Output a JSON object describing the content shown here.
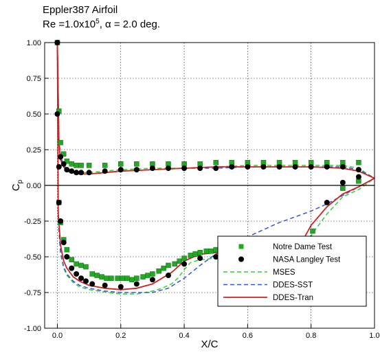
{
  "header": {
    "title": "Eppler387 Airfoil",
    "subtitle_prefix": "Re =1.0x10",
    "subtitle_exp": "5",
    "subtitle_suffix": ", α = 2.0 deg."
  },
  "chart_data": {
    "type": "scatter",
    "title": "Eppler387 Airfoil",
    "xlabel": "X/C",
    "ylabel": "C",
    "ylabel_sub": "p",
    "xlim": [
      -0.04,
      1.0
    ],
    "ylim": [
      1.0,
      -1.0
    ],
    "y_inverted": true,
    "grid": true,
    "legend_position": "lower-right",
    "x_ticks": [
      "0.0",
      "0.2",
      "0.4",
      "0.6",
      "0.8",
      "1.0"
    ],
    "x_tick_values": [
      0.0,
      0.2,
      0.4,
      0.6,
      0.8,
      1.0
    ],
    "y_ticks": [
      "-1.00",
      "-0.75",
      "-0.50",
      "-0.25",
      "0.00",
      "0.25",
      "0.50",
      "0.75",
      "1.00"
    ],
    "y_tick_values": [
      -1.0,
      -0.75,
      -0.5,
      -0.25,
      0.0,
      0.25,
      0.5,
      0.75,
      1.0
    ],
    "series": [
      {
        "name": "Notre Dame Test",
        "kind": "marker-square",
        "color": "#22a822",
        "upper": {
          "x": [
            0.0,
            0.005,
            0.01,
            0.02,
            0.03,
            0.045,
            0.06,
            0.075,
            0.09,
            0.11,
            0.125,
            0.14,
            0.155,
            0.17,
            0.19,
            0.205,
            0.22,
            0.235,
            0.25,
            0.27,
            0.285,
            0.3,
            0.32,
            0.335,
            0.35,
            0.37,
            0.385,
            0.4,
            0.42,
            0.435,
            0.45,
            0.47,
            0.485,
            0.5,
            0.52,
            0.535,
            0.55,
            0.57,
            0.585,
            0.6,
            0.62,
            0.635,
            0.65,
            0.665,
            0.68,
            0.695,
            0.71,
            0.725,
            0.74,
            0.755,
            0.77,
            0.79,
            0.805,
            0.9,
            0.95
          ],
          "y": [
            1.0,
            -0.12,
            -0.26,
            -0.38,
            -0.45,
            -0.52,
            -0.55,
            -0.56,
            -0.57,
            -0.62,
            -0.63,
            -0.64,
            -0.65,
            -0.65,
            -0.65,
            -0.65,
            -0.65,
            -0.66,
            -0.65,
            -0.64,
            -0.63,
            -0.62,
            -0.6,
            -0.58,
            -0.56,
            -0.55,
            -0.53,
            -0.51,
            -0.49,
            -0.48,
            -0.47,
            -0.46,
            -0.46,
            -0.45,
            -0.45,
            -0.45,
            -0.45,
            -0.45,
            -0.45,
            -0.44,
            -0.44,
            -0.45,
            -0.45,
            -0.46,
            -0.46,
            -0.46,
            -0.46,
            -0.46,
            -0.46,
            -0.46,
            -0.42,
            -0.38,
            -0.32,
            -0.02,
            0.03
          ]
        },
        "lower": {
          "x": [
            0.005,
            0.01,
            0.02,
            0.03,
            0.045,
            0.06,
            0.075,
            0.1,
            0.15,
            0.2,
            0.25,
            0.3,
            0.35,
            0.4,
            0.45,
            0.5,
            0.55,
            0.6,
            0.65,
            0.7,
            0.75,
            0.8,
            0.85,
            0.9,
            0.95
          ],
          "y": [
            0.52,
            0.3,
            0.22,
            0.17,
            0.15,
            0.14,
            0.14,
            0.14,
            0.14,
            0.15,
            0.15,
            0.15,
            0.15,
            0.15,
            0.15,
            0.16,
            0.16,
            0.16,
            0.16,
            0.16,
            0.16,
            0.16,
            0.16,
            0.16,
            0.16
          ]
        }
      },
      {
        "name": "NASA Langley Test",
        "kind": "marker-circle",
        "color": "#000000",
        "upper": {
          "x": [
            0.0,
            0.005,
            0.01,
            0.02,
            0.03,
            0.045,
            0.06,
            0.075,
            0.09,
            0.11,
            0.15,
            0.2,
            0.25,
            0.3,
            0.35,
            0.4,
            0.45,
            0.5,
            0.55,
            0.6,
            0.65,
            0.7,
            0.75,
            0.8,
            0.85,
            0.9,
            0.95
          ],
          "y": [
            1.0,
            -0.12,
            -0.25,
            -0.4,
            -0.5,
            -0.58,
            -0.62,
            -0.65,
            -0.67,
            -0.69,
            -0.7,
            -0.71,
            -0.69,
            -0.66,
            -0.63,
            -0.55,
            -0.51,
            -0.5,
            -0.5,
            -0.5,
            -0.5,
            -0.49,
            -0.49,
            -0.37,
            -0.12,
            0.02,
            0.06
          ]
        },
        "lower": {
          "x": [
            0.0,
            0.005,
            0.01,
            0.02,
            0.03,
            0.045,
            0.06,
            0.075,
            0.1,
            0.15,
            0.2,
            0.25,
            0.3,
            0.35,
            0.4,
            0.45,
            0.5,
            0.55,
            0.6,
            0.65,
            0.7,
            0.75,
            0.8,
            0.85,
            0.9,
            0.95
          ],
          "y": [
            0.5,
            0.13,
            0.2,
            0.15,
            0.11,
            0.1,
            0.09,
            0.09,
            0.09,
            0.1,
            0.11,
            0.11,
            0.12,
            0.12,
            0.12,
            0.12,
            0.12,
            0.13,
            0.13,
            0.13,
            0.13,
            0.13,
            0.13,
            0.13,
            0.13,
            0.11
          ]
        }
      },
      {
        "name": "MSES",
        "kind": "line-dashed",
        "color": "#33cc33",
        "upper": {
          "x": [
            0.0,
            0.003,
            0.01,
            0.02,
            0.03,
            0.05,
            0.07,
            0.1,
            0.13,
            0.16,
            0.2,
            0.25,
            0.3,
            0.33,
            0.36,
            0.38,
            0.4,
            0.42,
            0.45,
            0.5,
            0.55,
            0.6,
            0.65,
            0.7,
            0.72,
            0.74,
            0.76,
            0.78,
            0.8,
            0.85,
            0.9,
            0.95,
            1.0
          ],
          "y": [
            1.0,
            -0.25,
            -0.48,
            -0.58,
            -0.63,
            -0.68,
            -0.71,
            -0.73,
            -0.74,
            -0.75,
            -0.76,
            -0.76,
            -0.74,
            -0.72,
            -0.69,
            -0.65,
            -0.59,
            -0.54,
            -0.52,
            -0.51,
            -0.51,
            -0.5,
            -0.5,
            -0.5,
            -0.49,
            -0.48,
            -0.46,
            -0.42,
            -0.35,
            -0.2,
            -0.08,
            -0.03,
            0.05
          ]
        },
        "lower": {
          "x": [
            0.0,
            0.005,
            0.01,
            0.02,
            0.03,
            0.05,
            0.07,
            0.1,
            0.15,
            0.2,
            0.3,
            0.4,
            0.5,
            0.6,
            0.7,
            0.8,
            0.9,
            0.95,
            1.0
          ],
          "y": [
            1.0,
            0.32,
            0.2,
            0.15,
            0.11,
            0.1,
            0.09,
            0.09,
            0.1,
            0.11,
            0.12,
            0.12,
            0.13,
            0.14,
            0.14,
            0.14,
            0.14,
            0.12,
            0.05
          ]
        }
      },
      {
        "name": "DDES-SST",
        "kind": "line-dashed",
        "color": "#3355dd",
        "upper": {
          "x": [
            0.0,
            0.003,
            0.01,
            0.02,
            0.03,
            0.05,
            0.07,
            0.1,
            0.15,
            0.2,
            0.25,
            0.3,
            0.35,
            0.4,
            0.45,
            0.5,
            0.55,
            0.6,
            0.65,
            0.7,
            0.75,
            0.8,
            0.85,
            0.9,
            0.95,
            1.0
          ],
          "y": [
            1.0,
            -0.25,
            -0.47,
            -0.57,
            -0.62,
            -0.67,
            -0.7,
            -0.72,
            -0.74,
            -0.75,
            -0.75,
            -0.75,
            -0.72,
            -0.65,
            -0.56,
            -0.48,
            -0.42,
            -0.36,
            -0.31,
            -0.26,
            -0.22,
            -0.18,
            -0.13,
            -0.07,
            -0.01,
            0.05
          ]
        },
        "lower": {
          "x": [
            0.0,
            0.005,
            0.01,
            0.02,
            0.03,
            0.05,
            0.07,
            0.1,
            0.15,
            0.2,
            0.3,
            0.4,
            0.5,
            0.6,
            0.7,
            0.8,
            0.9,
            0.95,
            1.0
          ],
          "y": [
            1.0,
            0.32,
            0.2,
            0.14,
            0.11,
            0.09,
            0.08,
            0.08,
            0.09,
            0.1,
            0.11,
            0.12,
            0.12,
            0.13,
            0.13,
            0.13,
            0.13,
            0.11,
            0.05
          ]
        }
      },
      {
        "name": "DDES-Tran",
        "kind": "line-solid",
        "color": "#cc2222",
        "upper": {
          "x": [
            0.0,
            0.003,
            0.01,
            0.02,
            0.03,
            0.05,
            0.07,
            0.1,
            0.15,
            0.2,
            0.25,
            0.3,
            0.33,
            0.36,
            0.38,
            0.4,
            0.43,
            0.46,
            0.5,
            0.55,
            0.6,
            0.65,
            0.7,
            0.72,
            0.74,
            0.76,
            0.78,
            0.8,
            0.85,
            0.9,
            0.95,
            1.0
          ],
          "y": [
            1.0,
            -0.2,
            -0.42,
            -0.53,
            -0.58,
            -0.64,
            -0.67,
            -0.7,
            -0.72,
            -0.73,
            -0.72,
            -0.69,
            -0.65,
            -0.61,
            -0.57,
            -0.53,
            -0.5,
            -0.48,
            -0.47,
            -0.47,
            -0.47,
            -0.47,
            -0.47,
            -0.47,
            -0.46,
            -0.42,
            -0.36,
            -0.28,
            -0.15,
            -0.06,
            -0.01,
            0.05
          ]
        },
        "lower": {
          "x": [
            0.0,
            0.005,
            0.01,
            0.02,
            0.03,
            0.05,
            0.07,
            0.1,
            0.15,
            0.2,
            0.3,
            0.4,
            0.5,
            0.6,
            0.7,
            0.8,
            0.9,
            0.95,
            1.0
          ],
          "y": [
            1.0,
            0.3,
            0.18,
            0.13,
            0.1,
            0.09,
            0.08,
            0.08,
            0.09,
            0.1,
            0.11,
            0.12,
            0.13,
            0.13,
            0.13,
            0.13,
            0.12,
            0.1,
            0.05
          ]
        }
      }
    ]
  }
}
